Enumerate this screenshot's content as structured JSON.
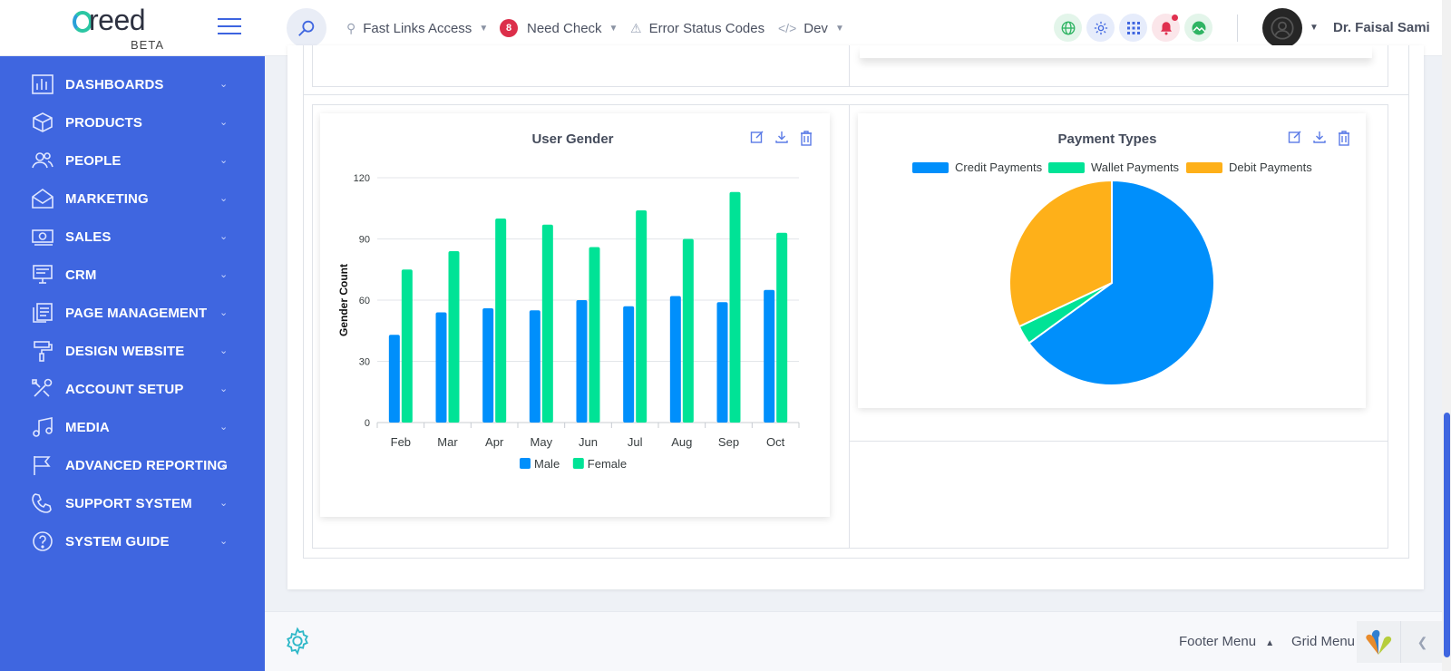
{
  "header": {
    "logo_word": "reed",
    "logo_badge": "BETA",
    "nav": [
      {
        "label": "Fast Links Access",
        "icon": "pin-icon"
      },
      {
        "label": "Need Check",
        "badge": "8"
      },
      {
        "label": "Error Status Codes",
        "icon": "warning-icon"
      },
      {
        "label": "Dev",
        "icon": "code-icon"
      }
    ],
    "user_name": "Dr. Faisal Sami",
    "accent": "#3f66e0"
  },
  "sidebar": {
    "items": [
      {
        "label": "DASHBOARDS",
        "icon": "bar-chart-icon"
      },
      {
        "label": "PRODUCTS",
        "icon": "box-icon"
      },
      {
        "label": "PEOPLE",
        "icon": "people-icon"
      },
      {
        "label": "MARKETING",
        "icon": "envelope-icon"
      },
      {
        "label": "SALES",
        "icon": "money-icon"
      },
      {
        "label": "CRM",
        "icon": "monitor-icon"
      },
      {
        "label": "PAGE MANAGEMENT",
        "icon": "pages-icon"
      },
      {
        "label": "DESIGN WEBSITE",
        "icon": "paint-roller-icon"
      },
      {
        "label": "ACCOUNT SETUP",
        "icon": "tools-icon"
      },
      {
        "label": "MEDIA",
        "icon": "music-icon"
      },
      {
        "label": "ADVANCED REPORTING",
        "icon": "flag-icon"
      },
      {
        "label": "SUPPORT SYSTEM",
        "icon": "phone-icon"
      },
      {
        "label": "SYSTEM GUIDE",
        "icon": "question-icon"
      }
    ]
  },
  "cards": {
    "gender": {
      "title": "User Gender"
    },
    "payment": {
      "title": "Payment Types"
    }
  },
  "chart_data": [
    {
      "type": "bar",
      "title": "User Gender",
      "xlabel": "",
      "ylabel": "Gender Count",
      "categories": [
        "Feb",
        "Mar",
        "Apr",
        "May",
        "Jun",
        "Jul",
        "Aug",
        "Sep",
        "Oct"
      ],
      "series": [
        {
          "name": "Male",
          "color": "#008ffb",
          "values": [
            43,
            54,
            56,
            55,
            60,
            57,
            62,
            59,
            65
          ]
        },
        {
          "name": "Female",
          "color": "#00e396",
          "values": [
            75,
            84,
            100,
            97,
            86,
            104,
            90,
            113,
            93
          ]
        }
      ],
      "ylim": [
        0,
        120
      ],
      "yticks": [
        0,
        30,
        60,
        90,
        120
      ],
      "legend": "bottom",
      "grid": true
    },
    {
      "type": "pie",
      "title": "Payment Types",
      "labels": [
        "Credit Payments",
        "Wallet Payments",
        "Debit Payments"
      ],
      "values": [
        65,
        3,
        32
      ],
      "colors": [
        "#008ffb",
        "#00e396",
        "#feb019"
      ],
      "legend": "top"
    }
  ],
  "footer": {
    "footer_menu": "Footer Menu",
    "grid_menu": "Grid Menu"
  }
}
